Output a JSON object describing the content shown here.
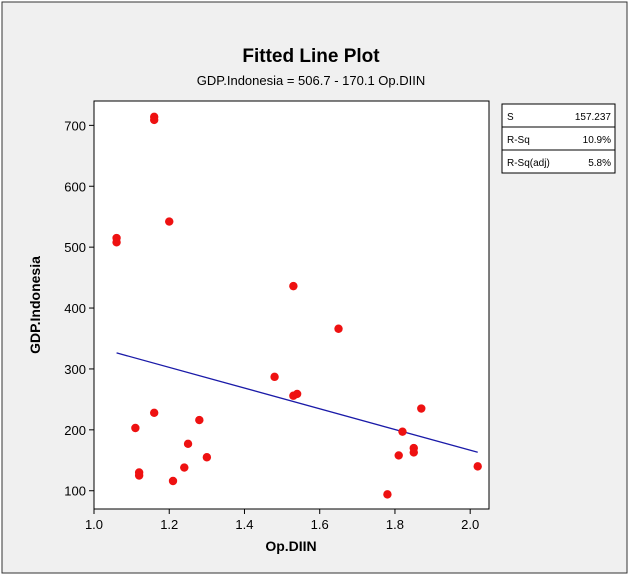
{
  "chart_data": {
    "type": "scatter",
    "title": "Fitted Line Plot",
    "subtitle": "GDP.Indonesia = 506.7 - 170.1 Op.DIIN",
    "xlabel": "Op.DIIN",
    "ylabel": "GDP.Indonesia",
    "xlim": [
      1.0,
      2.05
    ],
    "ylim": [
      70,
      740
    ],
    "xticks": [
      "1.0",
      "1.2",
      "1.4",
      "1.6",
      "1.8",
      "2.0"
    ],
    "yticks": [
      "100",
      "200",
      "300",
      "400",
      "500",
      "600",
      "700"
    ],
    "grid": false,
    "points": [
      {
        "x": 1.06,
        "y": 515
      },
      {
        "x": 1.06,
        "y": 508
      },
      {
        "x": 1.11,
        "y": 203
      },
      {
        "x": 1.12,
        "y": 130
      },
      {
        "x": 1.12,
        "y": 125
      },
      {
        "x": 1.16,
        "y": 714
      },
      {
        "x": 1.16,
        "y": 709
      },
      {
        "x": 1.16,
        "y": 228
      },
      {
        "x": 1.2,
        "y": 542
      },
      {
        "x": 1.21,
        "y": 116
      },
      {
        "x": 1.24,
        "y": 138
      },
      {
        "x": 1.25,
        "y": 177
      },
      {
        "x": 1.28,
        "y": 216
      },
      {
        "x": 1.3,
        "y": 155
      },
      {
        "x": 1.48,
        "y": 287
      },
      {
        "x": 1.53,
        "y": 436
      },
      {
        "x": 1.53,
        "y": 256
      },
      {
        "x": 1.54,
        "y": 259
      },
      {
        "x": 1.65,
        "y": 366
      },
      {
        "x": 1.78,
        "y": 94
      },
      {
        "x": 1.81,
        "y": 158
      },
      {
        "x": 1.82,
        "y": 197
      },
      {
        "x": 1.85,
        "y": 170
      },
      {
        "x": 1.85,
        "y": 163
      },
      {
        "x": 1.87,
        "y": 235
      },
      {
        "x": 2.02,
        "y": 140
      }
    ],
    "fit_line": {
      "intercept": 506.7,
      "slope": -170.1,
      "x_range": [
        1.06,
        2.02
      ]
    },
    "stats": [
      {
        "label": "S",
        "value": "157.237"
      },
      {
        "label": "R-Sq",
        "value": "10.9%"
      },
      {
        "label": "R-Sq(adj)",
        "value": "5.8%"
      }
    ],
    "colors": {
      "points": "#ee1111",
      "fit_line": "#1a1aa8",
      "frame_bg": "#f0f0f0",
      "plot_bg": "#ffffff"
    }
  }
}
